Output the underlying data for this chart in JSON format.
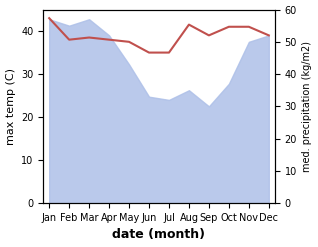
{
  "months": [
    "Jan",
    "Feb",
    "Mar",
    "Apr",
    "May",
    "Jun",
    "Jul",
    "Aug",
    "Sep",
    "Oct",
    "Nov",
    "Dec"
  ],
  "temperature": [
    43,
    38,
    38.5,
    38,
    37.5,
    35,
    35,
    41.5,
    39,
    41,
    41,
    39
  ],
  "precipitation": [
    57,
    55,
    57,
    52,
    43,
    33,
    32,
    35,
    30,
    37,
    50,
    52
  ],
  "temp_color": "#c0504d",
  "precip_color_fill": "#aec0e8",
  "temp_ylim": [
    0,
    45
  ],
  "precip_ylim": [
    0,
    60
  ],
  "temp_yticks": [
    0,
    10,
    20,
    30,
    40
  ],
  "precip_yticks": [
    0,
    10,
    20,
    30,
    40,
    50,
    60
  ],
  "xlabel": "date (month)",
  "ylabel_left": "max temp (C)",
  "ylabel_right": "med. precipitation (kg/m2)",
  "bg_color": "#ffffff"
}
